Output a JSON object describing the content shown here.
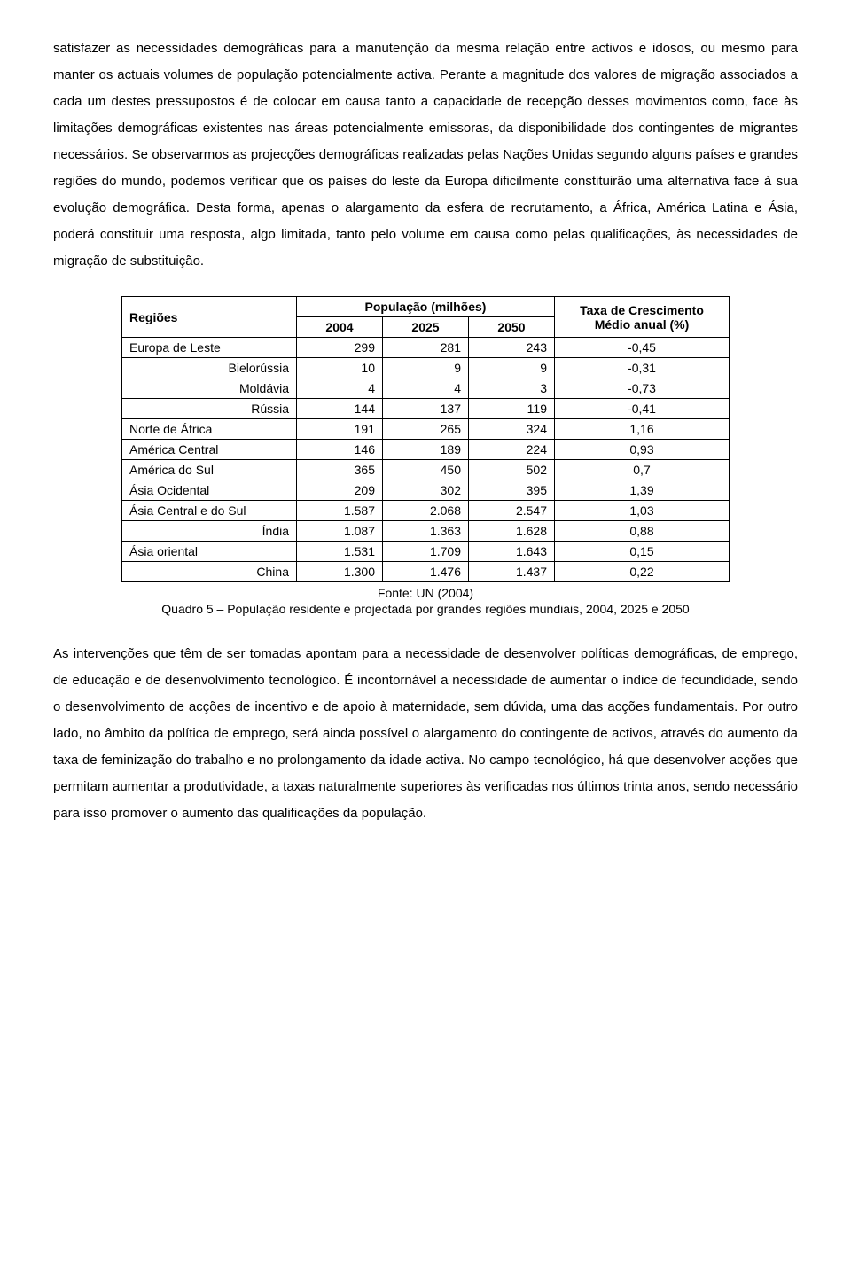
{
  "paragraph1": "satisfazer as necessidades demográficas para a manutenção da mesma relação entre activos e idosos, ou mesmo para manter os actuais volumes de população potencialmente activa. Perante a magnitude dos valores de migração associados a cada um destes pressupostos é de colocar em causa tanto a capacidade de recepção desses movimentos como, face às limitações demográficas existentes nas áreas potencialmente emissoras, da disponibilidade dos contingentes de migrantes necessários. Se observarmos as projecções demográficas realizadas pelas Nações Unidas segundo alguns países e grandes regiões do mundo, podemos verificar que os países do leste da Europa dificilmente constituirão uma alternativa face à sua evolução demográfica. Desta forma, apenas o alargamento da esfera de recrutamento, a África, América Latina e Ásia, poderá constituir uma resposta, algo limitada, tanto pelo volume em causa como pelas qualificações, às necessidades de migração de substituição.",
  "table": {
    "header": {
      "regioes": "Regiões",
      "pop": "População (milhões)",
      "y2004": "2004",
      "y2025": "2025",
      "y2050": "2050",
      "rate": "Taxa de Crescimento Médio anual (%)"
    },
    "rows": [
      {
        "region": "Europa de Leste",
        "align": "left",
        "v2004": "299",
        "v2025": "281",
        "v2050": "243",
        "rate": "-0,45"
      },
      {
        "region": "Bielorússia",
        "align": "right",
        "v2004": "10",
        "v2025": "9",
        "v2050": "9",
        "rate": "-0,31"
      },
      {
        "region": "Moldávia",
        "align": "right",
        "v2004": "4",
        "v2025": "4",
        "v2050": "3",
        "rate": "-0,73"
      },
      {
        "region": "Rússia",
        "align": "right",
        "v2004": "144",
        "v2025": "137",
        "v2050": "119",
        "rate": "-0,41"
      },
      {
        "region": "Norte de África",
        "align": "left",
        "v2004": "191",
        "v2025": "265",
        "v2050": "324",
        "rate": "1,16"
      },
      {
        "region": "América Central",
        "align": "left",
        "v2004": "146",
        "v2025": "189",
        "v2050": "224",
        "rate": "0,93"
      },
      {
        "region": "América do Sul",
        "align": "left",
        "v2004": "365",
        "v2025": "450",
        "v2050": "502",
        "rate": "0,7"
      },
      {
        "region": "Ásia Ocidental",
        "align": "left",
        "v2004": "209",
        "v2025": "302",
        "v2050": "395",
        "rate": "1,39"
      },
      {
        "region": "Ásia Central e do Sul",
        "align": "left",
        "v2004": "1.587",
        "v2025": "2.068",
        "v2050": "2.547",
        "rate": "1,03"
      },
      {
        "region": "Índia",
        "align": "right",
        "v2004": "1.087",
        "v2025": "1.363",
        "v2050": "1.628",
        "rate": "0,88"
      },
      {
        "region": "Ásia oriental",
        "align": "left",
        "v2004": "1.531",
        "v2025": "1.709",
        "v2050": "1.643",
        "rate": "0,15"
      },
      {
        "region": "China",
        "align": "right",
        "v2004": "1.300",
        "v2025": "1.476",
        "v2050": "1.437",
        "rate": "0,22"
      }
    ]
  },
  "source": "Fonte: UN (2004)",
  "caption": "Quadro 5 – População residente e projectada por grandes regiões mundiais, 2004, 2025 e 2050",
  "paragraph2": "As intervenções que têm de ser tomadas apontam para a necessidade de desenvolver políticas demográficas, de emprego, de educação e de desenvolvimento tecnológico. É incontornável a necessidade de aumentar o índice de fecundidade, sendo o desenvolvimento de acções de incentivo e de apoio à maternidade, sem dúvida, uma das acções fundamentais. Por outro lado, no âmbito da política de emprego, será ainda possível o alargamento do contingente de activos, através do aumento da taxa de feminização do trabalho e no prolongamento da idade activa. No campo tecnológico, há que desenvolver acções que permitam aumentar a produtividade, a taxas naturalmente superiores às verificadas nos últimos trinta anos, sendo necessário para isso promover o aumento das qualificações da população."
}
